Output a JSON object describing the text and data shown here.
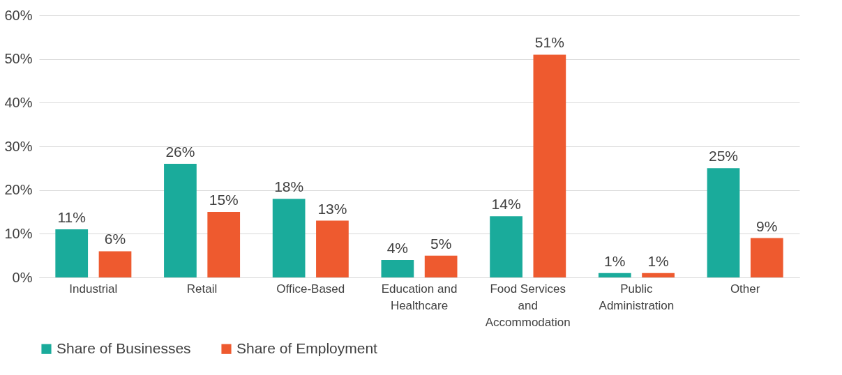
{
  "chart_data": {
    "type": "bar",
    "categories": [
      "Industrial",
      "Retail",
      "Office-Based",
      "Education and Healthcare",
      "Food Services and Accommodation",
      "Public Administration",
      "Other"
    ],
    "series": [
      {
        "name": "Share of Businesses",
        "color": "#1aab9b",
        "values": [
          11,
          26,
          18,
          4,
          14,
          1,
          25
        ]
      },
      {
        "name": "Share of Employment",
        "color": "#ee5a2f",
        "values": [
          6,
          15,
          13,
          5,
          51,
          1,
          9
        ]
      }
    ],
    "value_labels": [
      [
        "11%",
        "26%",
        "18%",
        "4%",
        "14%",
        "1%",
        "25%"
      ],
      [
        "6%",
        "15%",
        "13%",
        "5%",
        "51%",
        "1%",
        "9%"
      ]
    ],
    "ylim": [
      0,
      60
    ],
    "yticks": [
      {
        "value": 0,
        "label": "0%"
      },
      {
        "value": 10,
        "label": "10%"
      },
      {
        "value": 20,
        "label": "20%"
      },
      {
        "value": 30,
        "label": "30%"
      },
      {
        "value": 40,
        "label": "40%"
      },
      {
        "value": 50,
        "label": "50%"
      },
      {
        "value": 60,
        "label": "60%"
      }
    ],
    "grid": "y",
    "legend": "bottom"
  }
}
